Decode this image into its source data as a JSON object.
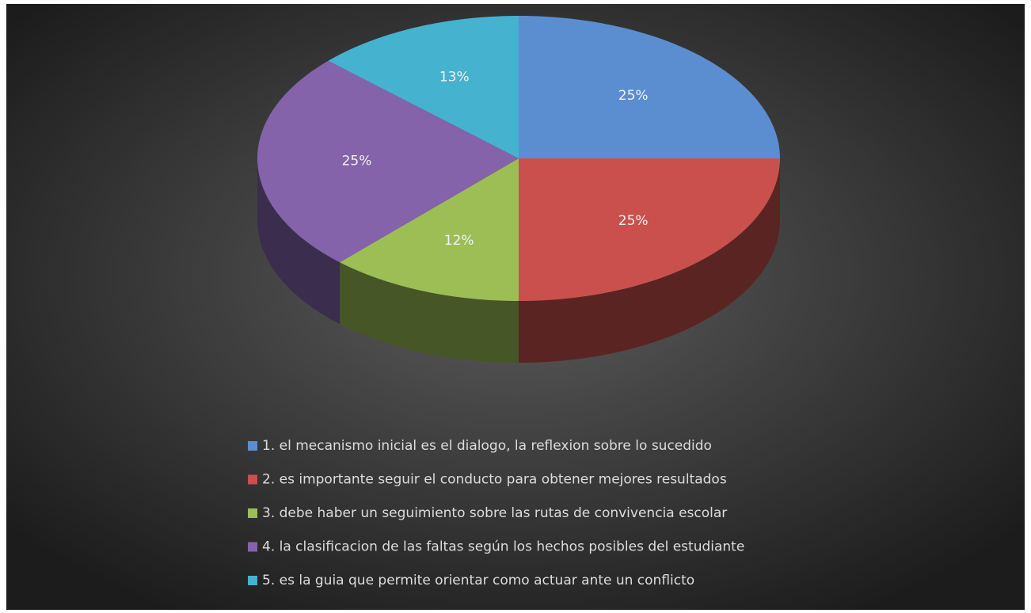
{
  "chart_data": {
    "type": "pie",
    "categories": [
      "1. el mecanismo inicial es el dialogo, la reflexion sobre lo sucedido",
      "2. es importante seguir el conducto para obtener mejores resultados",
      "3. debe haber un seguimiento sobre las rutas de convivencia escolar",
      "4. la clasificacion de las faltas según los hechos posibles del estudiante",
      "5. es la guia que permite orientar como actuar ante un conflicto"
    ],
    "values": [
      25,
      25,
      12,
      25,
      13
    ],
    "value_labels": [
      "25%",
      "25%",
      "12%",
      "25%",
      "13%"
    ],
    "colors": [
      "#5b8ed1",
      "#c9504c",
      "#9cbe55",
      "#8463aa",
      "#45b2cf"
    ],
    "legend": "bottom"
  }
}
